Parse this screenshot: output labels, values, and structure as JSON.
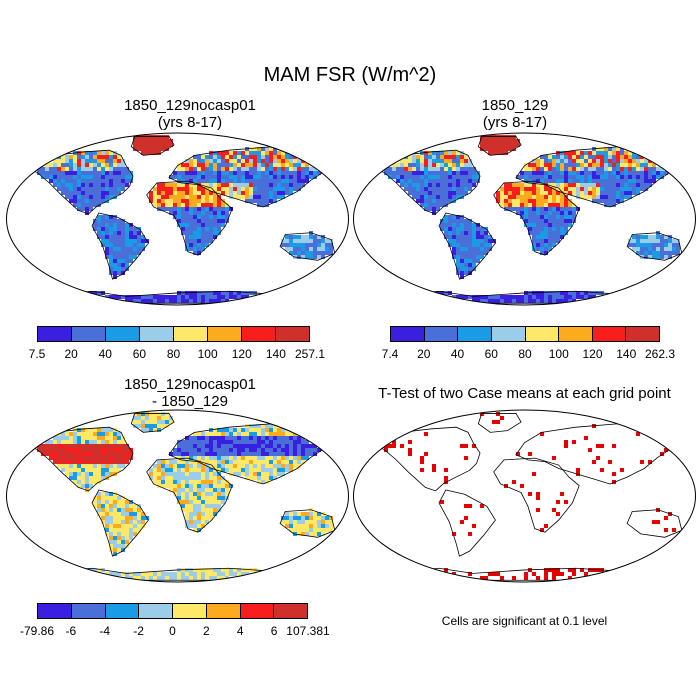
{
  "title": "MAM FSR (W/m^2)",
  "panels": [
    {
      "id": "case1",
      "title": "1850_129nocasp01",
      "subtitle": "(yrs 8-17)",
      "colorbar": {
        "labels": [
          "7.5",
          "20",
          "40",
          "60",
          "80",
          "100",
          "120",
          "140",
          "257.1"
        ],
        "colors": [
          "#3b1fe0",
          "#4a6fd8",
          "#1a9be6",
          "#9ccde8",
          "#fde86a",
          "#fcaa1e",
          "#f81e1e",
          "#d0302c"
        ]
      }
    },
    {
      "id": "case2",
      "title": "1850_129",
      "subtitle": "(yrs 8-17)",
      "colorbar": {
        "labels": [
          "7.4",
          "20",
          "40",
          "60",
          "80",
          "100",
          "120",
          "140",
          "262.3"
        ],
        "colors": [
          "#3b1fe0",
          "#4a6fd8",
          "#1a9be6",
          "#9ccde8",
          "#fde86a",
          "#fcaa1e",
          "#f81e1e",
          "#d0302c"
        ]
      }
    },
    {
      "id": "diff",
      "title": "1850_129nocasp01",
      "subtitle": "- 1850_129",
      "colorbar": {
        "labels": [
          "-79.86",
          "-6",
          "-4",
          "-2",
          "0",
          "2",
          "4",
          "6",
          "107.381"
        ],
        "colors": [
          "#3b1fe0",
          "#4a6fd8",
          "#1a9be6",
          "#9ccde8",
          "#fde86a",
          "#fcaa1e",
          "#f81e1e",
          "#d0302c"
        ]
      }
    },
    {
      "id": "ttest",
      "title": "T-Test of two Case means at each grid point",
      "note": "Cells are significant at 0.1 level",
      "significance_color": "#e60000"
    }
  ]
}
